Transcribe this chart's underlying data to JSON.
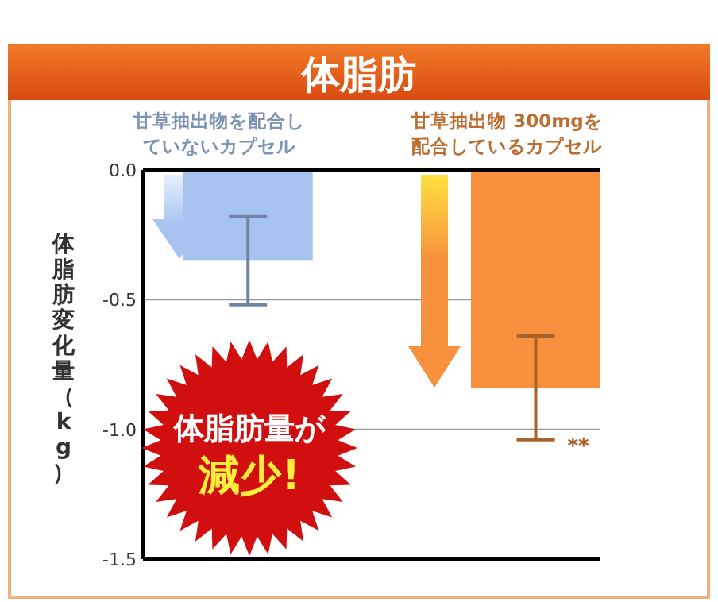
{
  "chart_data": {
    "type": "bar",
    "title": "体脂肪",
    "ylabel": "体脂肪変化量（kg）",
    "categories": [
      "甘草抽出物を配合していないカプセル",
      "甘草抽出物 300mgを配合しているカプセル"
    ],
    "series": [
      {
        "colors": [
          "#a6c3f0",
          "#f7913d"
        ],
        "values": [
          -0.35,
          -0.84
        ],
        "errors": [
          0.17,
          0.2
        ]
      }
    ],
    "ylim": [
      -1.5,
      0
    ],
    "yticks": [
      {
        "value": 0,
        "label": "0.0"
      },
      -0.5,
      {
        "value": -1,
        "label": "-1.0"
      },
      -1.5
    ],
    "grid": "y",
    "annotations": [
      "**",
      "体脂肪量が減少!"
    ]
  }
}
